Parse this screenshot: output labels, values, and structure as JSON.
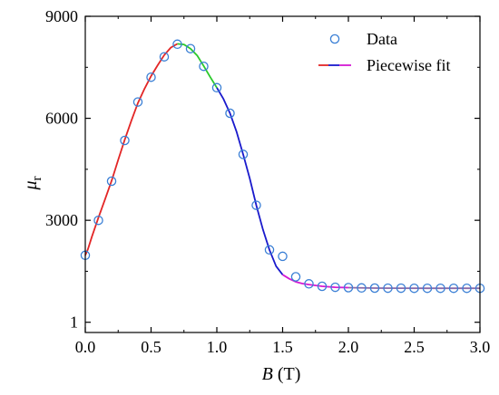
{
  "chart_data": {
    "type": "line",
    "xlabel_italic": "B",
    "xlabel_unit": " (T)",
    "ylabel_symbol": "μ",
    "ylabel_sub": "r",
    "xlim": [
      0.0,
      3.0
    ],
    "ylim": [
      1,
      9000
    ],
    "xticks": [
      0.0,
      0.5,
      1.0,
      1.5,
      2.0,
      2.5,
      3.0
    ],
    "xtick_labels": [
      "0.0",
      "0.5",
      "1.0",
      "1.5",
      "2.0",
      "2.5",
      "3.0"
    ],
    "yticks": [
      1,
      3000,
      6000,
      9000
    ],
    "ytick_labels": [
      "1",
      "3000",
      "6000",
      "9000"
    ],
    "legend_position": "top-right",
    "legend": {
      "data_label": "Data",
      "fit_label": "Piecewise fit"
    },
    "series": [
      {
        "name": "Data",
        "kind": "markers",
        "marker": "open-circle",
        "color": "#3a7fd5",
        "x": [
          0.0,
          0.1,
          0.2,
          0.3,
          0.4,
          0.5,
          0.6,
          0.7,
          0.8,
          0.9,
          1.0,
          1.1,
          1.2,
          1.3,
          1.4,
          1.5,
          1.6,
          1.7,
          1.8,
          1.9,
          2.0,
          2.1,
          2.2,
          2.3,
          2.4,
          2.5,
          2.6,
          2.7,
          2.8,
          2.9,
          3.0
        ],
        "y": [
          1970,
          3000,
          4150,
          5350,
          6480,
          7210,
          7810,
          8180,
          8050,
          7530,
          6900,
          6150,
          4940,
          3440,
          2130,
          1940,
          1340,
          1130,
          1060,
          1030,
          1020,
          1010,
          1005,
          1003,
          1002,
          1001,
          1001,
          1001,
          1001,
          1001,
          1001
        ]
      },
      {
        "name": "Piecewise fit",
        "kind": "line",
        "segments": [
          {
            "color": "#e32626",
            "x": [
              0.0,
              0.02,
              0.05,
              0.1,
              0.15,
              0.2,
              0.25,
              0.3,
              0.35,
              0.4,
              0.45,
              0.5,
              0.55,
              0.6,
              0.65,
              0.7
            ],
            "y": [
              1970,
              2150,
              2520,
              3080,
              3620,
              4160,
              4780,
              5370,
              5930,
              6450,
              6870,
              7240,
              7560,
              7860,
              8080,
              8190
            ]
          },
          {
            "color": "#2ac92a",
            "x": [
              0.7,
              0.75,
              0.8,
              0.85,
              0.9,
              0.95,
              1.0
            ],
            "y": [
              8190,
              8170,
              8050,
              7850,
              7540,
              7210,
              6900
            ]
          },
          {
            "color": "#1a1acc",
            "x": [
              1.0,
              1.05,
              1.1,
              1.15,
              1.2,
              1.25,
              1.3,
              1.35,
              1.4,
              1.45,
              1.5
            ],
            "y": [
              6900,
              6570,
              6150,
              5600,
              4940,
              4230,
              3440,
              2730,
              2130,
              1650,
              1400
            ]
          },
          {
            "color": "#d41ad4",
            "x": [
              1.5,
              1.55,
              1.6,
              1.65,
              1.7,
              1.8,
              1.9,
              2.0
            ],
            "y": [
              1400,
              1280,
              1190,
              1140,
              1110,
              1060,
              1030,
              1020
            ]
          },
          {
            "color": "#8a6aa8",
            "x": [
              2.0,
              2.2,
              2.4,
              2.6,
              2.8,
              3.0
            ],
            "y": [
              1020,
              1005,
              1002,
              1001,
              1001,
              1001
            ]
          }
        ]
      }
    ]
  }
}
